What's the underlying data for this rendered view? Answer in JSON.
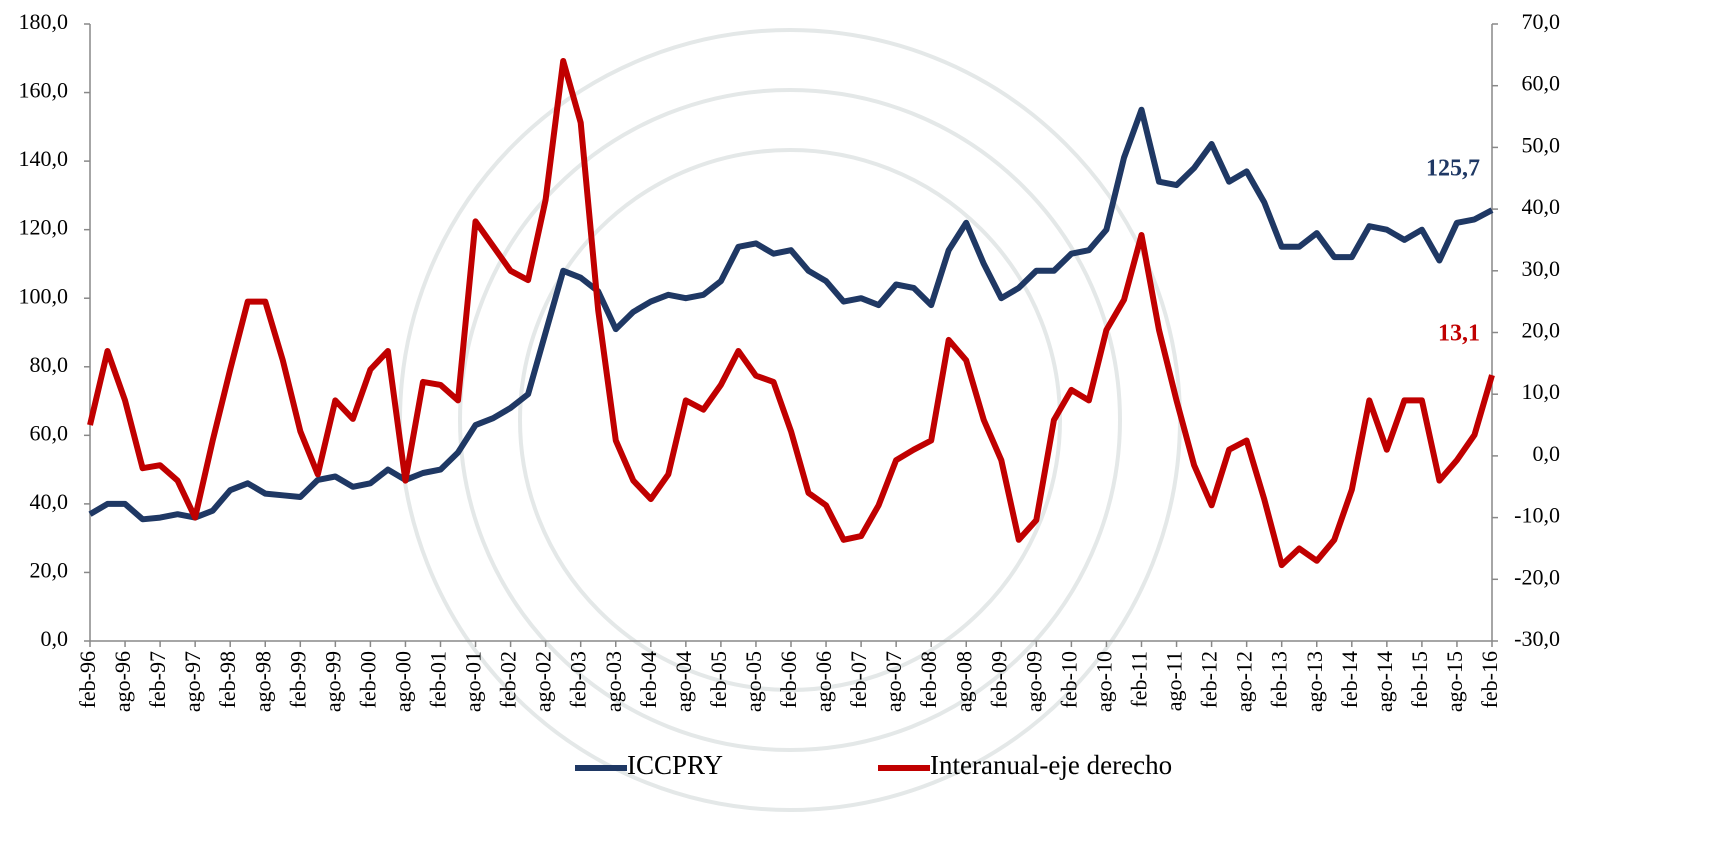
{
  "chart_data": {
    "type": "line",
    "categories": [
      "feb-96",
      null,
      "ago-96",
      null,
      "feb-97",
      null,
      "ago-97",
      null,
      "feb-98",
      null,
      "ago-98",
      null,
      "feb-99",
      null,
      "ago-99",
      null,
      "feb-00",
      null,
      "ago-00",
      null,
      "feb-01",
      null,
      "ago-01",
      null,
      "feb-02",
      null,
      "ago-02",
      null,
      "feb-03",
      null,
      "ago-03",
      null,
      "feb-04",
      null,
      "ago-04",
      null,
      "feb-05",
      null,
      "ago-05",
      null,
      "feb-06",
      null,
      "ago-06",
      null,
      "feb-07",
      null,
      "ago-07",
      null,
      "feb-08",
      null,
      "ago-08",
      null,
      "feb-09",
      null,
      "ago-09",
      null,
      "feb-10",
      null,
      "ago-10",
      null,
      "feb-11",
      null,
      "ago-11",
      null,
      "feb-12",
      null,
      "ago-12",
      null,
      "feb-13",
      null,
      "ago-13",
      null,
      "feb-14",
      null,
      "ago-14",
      null,
      "feb-15",
      null,
      "ago-15",
      null,
      "feb-16"
    ],
    "series": [
      {
        "name": "ICCPRY",
        "color": "#1f3864",
        "axis": "y",
        "values": [
          37,
          40,
          40,
          35.5,
          36,
          37,
          36,
          38,
          44,
          46,
          43,
          42.5,
          42,
          47,
          48,
          45,
          46,
          50,
          47,
          49,
          50,
          55,
          63,
          65,
          68,
          72,
          90,
          108,
          106,
          102,
          91,
          96,
          99,
          101,
          100,
          101,
          105,
          115,
          116,
          113,
          114,
          108,
          105,
          99,
          100,
          98,
          104,
          103,
          98,
          114,
          122,
          110,
          100,
          103,
          108,
          108,
          113,
          114,
          120,
          141,
          155,
          134,
          133,
          138,
          145,
          134,
          137,
          128,
          115,
          115,
          119,
          112,
          112,
          121,
          120,
          117,
          120,
          111,
          122,
          123,
          125.7
        ],
        "value_labels": [
          null,
          null,
          null,
          null,
          null,
          null,
          null,
          null,
          null,
          null,
          null,
          null,
          null,
          null,
          null,
          null,
          null,
          null,
          null,
          null,
          null,
          null,
          null,
          null,
          null,
          null,
          null,
          null,
          null,
          null,
          null,
          null,
          null,
          null,
          null,
          null,
          null,
          null,
          null,
          null,
          null,
          null,
          null,
          null,
          null,
          null,
          null,
          null,
          null,
          null,
          null,
          null,
          null,
          null,
          null,
          null,
          null,
          null,
          null,
          null,
          null,
          null,
          null,
          null,
          null,
          null,
          null,
          null,
          null,
          null,
          null,
          null,
          null,
          null,
          null,
          null,
          null,
          null,
          null,
          null,
          "125,7"
        ]
      },
      {
        "name": "Interanual-eje derecho",
        "color": "#c00000",
        "axis": "y2",
        "values": [
          5,
          17,
          9,
          -2,
          -1.5,
          -4,
          -10,
          2.5,
          14,
          25,
          25,
          15.5,
          4,
          -3,
          9,
          6,
          14,
          17,
          -4,
          12,
          11.5,
          9,
          38,
          34,
          30,
          28.5,
          41.5,
          64,
          54,
          23.6,
          2.5,
          -4,
          -7,
          -3,
          9,
          7.5,
          11.5,
          17,
          13,
          12,
          4,
          -6,
          -8,
          -13.6,
          -13,
          -8,
          -0.7,
          1,
          2.5,
          18.8,
          15.5,
          5.8,
          -0.7,
          -13.6,
          -10.4,
          5.8,
          10.7,
          9,
          20.4,
          25.3,
          35.8,
          20.4,
          9,
          -1.5,
          -8,
          1,
          2.5,
          -7,
          -17.7,
          -15,
          -17,
          -13.6,
          -5.5,
          9,
          1,
          9,
          9,
          -4,
          -0.7,
          3.4,
          13.1
        ],
        "value_labels": [
          null,
          null,
          null,
          null,
          null,
          null,
          null,
          null,
          null,
          null,
          null,
          null,
          null,
          null,
          null,
          null,
          null,
          null,
          null,
          null,
          null,
          null,
          null,
          null,
          null,
          null,
          null,
          null,
          null,
          null,
          null,
          null,
          null,
          null,
          null,
          null,
          null,
          null,
          null,
          null,
          null,
          null,
          null,
          null,
          null,
          null,
          null,
          null,
          null,
          null,
          null,
          null,
          null,
          null,
          null,
          null,
          null,
          null,
          null,
          null,
          null,
          null,
          null,
          null,
          null,
          null,
          null,
          null,
          null,
          null,
          null,
          null,
          null,
          null,
          null,
          null,
          null,
          null,
          null,
          null,
          "13,1"
        ]
      }
    ],
    "ylim": [
      0,
      180
    ],
    "yticks": [
      {
        "value": 0,
        "label": "0,0"
      },
      {
        "value": 20,
        "label": "20,0"
      },
      {
        "value": 40,
        "label": "40,0"
      },
      {
        "value": 60,
        "label": "60,0"
      },
      {
        "value": 80,
        "label": "80,0"
      },
      {
        "value": 100,
        "label": "100,0"
      },
      {
        "value": 120,
        "label": "120,0"
      },
      {
        "value": 140,
        "label": "140,0"
      },
      {
        "value": 160,
        "label": "160,0"
      },
      {
        "value": 180,
        "label": "180,0"
      }
    ],
    "y2lim": [
      -30,
      70
    ],
    "y2ticks": [
      {
        "value": -30,
        "label": "-30,0"
      },
      {
        "value": -20,
        "label": "-20,0"
      },
      {
        "value": -10,
        "label": "-10,0"
      },
      {
        "value": 0,
        "label": "0,0"
      },
      {
        "value": 10,
        "label": "10,0"
      },
      {
        "value": 20,
        "label": "20,0"
      },
      {
        "value": 30,
        "label": "30,0"
      },
      {
        "value": 40,
        "label": "40,0"
      },
      {
        "value": 50,
        "label": "50,0"
      },
      {
        "value": 60,
        "label": "60,0"
      },
      {
        "value": 70,
        "label": "70,0"
      }
    ],
    "legend": "bottom"
  }
}
